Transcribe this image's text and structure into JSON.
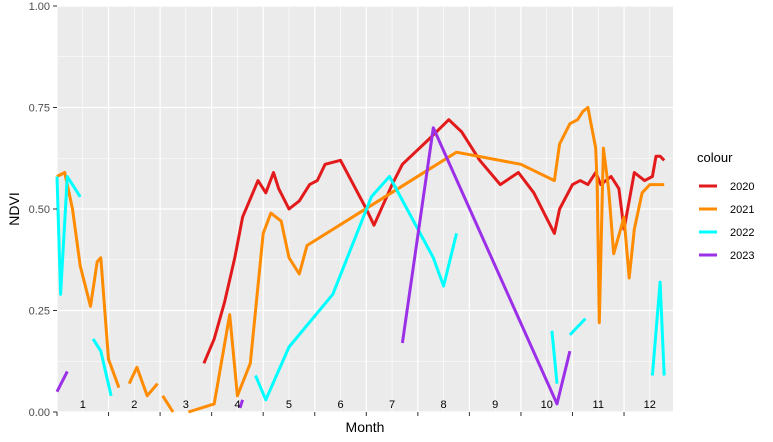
{
  "chart_data": {
    "type": "line",
    "xlabel": "Month",
    "ylabel": "NDVI",
    "ylim": [
      0,
      1
    ],
    "xlim": [
      1,
      12.95
    ],
    "y_ticks": [
      "0.00",
      "0.25",
      "0.50",
      "0.75",
      "1.00"
    ],
    "y_tick_values": [
      0,
      0.25,
      0.5,
      0.75,
      1
    ],
    "month_labels": [
      "1",
      "2",
      "3",
      "4",
      "5",
      "6",
      "7",
      "8",
      "9",
      "10",
      "11",
      "12"
    ],
    "grid": true,
    "legend": {
      "title": "colour",
      "position": "right"
    },
    "series": [
      {
        "name": "2020",
        "color": "#e31a1c",
        "segments": [
          [
            [
              3.85,
              0.12
            ],
            [
              4.05,
              0.18
            ],
            [
              4.25,
              0.27
            ],
            [
              4.45,
              0.38
            ],
            [
              4.6,
              0.48
            ],
            [
              4.9,
              0.57
            ],
            [
              5.05,
              0.54
            ],
            [
              5.2,
              0.59
            ],
            [
              5.3,
              0.55
            ],
            [
              5.5,
              0.5
            ],
            [
              5.7,
              0.52
            ],
            [
              5.9,
              0.56
            ],
            [
              6.05,
              0.57
            ],
            [
              6.2,
              0.61
            ],
            [
              6.5,
              0.62
            ],
            [
              7.0,
              0.5
            ],
            [
              7.15,
              0.46
            ],
            [
              7.5,
              0.56
            ],
            [
              7.7,
              0.61
            ],
            [
              8.2,
              0.67
            ],
            [
              8.6,
              0.72
            ],
            [
              8.85,
              0.69
            ],
            [
              9.2,
              0.62
            ],
            [
              9.6,
              0.56
            ],
            [
              9.95,
              0.59
            ],
            [
              10.25,
              0.54
            ],
            [
              10.65,
              0.44
            ],
            [
              10.75,
              0.5
            ],
            [
              11.0,
              0.56
            ],
            [
              11.15,
              0.57
            ],
            [
              11.3,
              0.56
            ],
            [
              11.45,
              0.59
            ],
            [
              11.55,
              0.56
            ],
            [
              11.75,
              0.58
            ],
            [
              11.9,
              0.55
            ],
            [
              12.0,
              0.45
            ],
            [
              12.1,
              0.52
            ],
            [
              12.2,
              0.59
            ],
            [
              12.4,
              0.57
            ],
            [
              12.55,
              0.58
            ],
            [
              12.62,
              0.63
            ],
            [
              12.7,
              0.63
            ],
            [
              12.78,
              0.62
            ]
          ]
        ]
      },
      {
        "name": "2021",
        "color": "#ff8c00",
        "segments": [
          [
            [
              1.0,
              0.58
            ],
            [
              1.15,
              0.59
            ],
            [
              1.3,
              0.5
            ],
            [
              1.45,
              0.36
            ],
            [
              1.65,
              0.26
            ],
            [
              1.78,
              0.37
            ],
            [
              1.85,
              0.38
            ],
            [
              2.0,
              0.13
            ],
            [
              2.2,
              0.06
            ]
          ],
          [
            [
              2.4,
              0.07
            ],
            [
              2.55,
              0.11
            ],
            [
              2.75,
              0.04
            ],
            [
              2.95,
              0.07
            ]
          ],
          [
            [
              3.05,
              0.04
            ],
            [
              3.25,
              0.0
            ]
          ],
          [
            [
              3.55,
              0.0
            ],
            [
              4.05,
              0.02
            ],
            [
              4.35,
              0.24
            ],
            [
              4.5,
              0.04
            ],
            [
              4.75,
              0.12
            ],
            [
              5.0,
              0.44
            ],
            [
              5.15,
              0.49
            ],
            [
              5.35,
              0.47
            ],
            [
              5.5,
              0.38
            ],
            [
              5.7,
              0.34
            ],
            [
              5.85,
              0.41
            ],
            [
              8.75,
              0.64
            ],
            [
              10.0,
              0.61
            ],
            [
              10.65,
              0.57
            ],
            [
              10.75,
              0.66
            ],
            [
              10.95,
              0.71
            ],
            [
              11.1,
              0.72
            ],
            [
              11.2,
              0.74
            ],
            [
              11.3,
              0.75
            ],
            [
              11.45,
              0.65
            ],
            [
              11.48,
              0.56
            ],
            [
              11.52,
              0.22
            ],
            [
              11.6,
              0.65
            ],
            [
              11.7,
              0.55
            ],
            [
              11.8,
              0.39
            ],
            [
              12.0,
              0.48
            ],
            [
              12.1,
              0.33
            ],
            [
              12.2,
              0.45
            ],
            [
              12.35,
              0.54
            ],
            [
              12.5,
              0.56
            ],
            [
              12.78,
              0.56
            ]
          ]
        ]
      },
      {
        "name": "2022",
        "color": "#00ffff",
        "segments": [
          [
            [
              1.0,
              0.58
            ],
            [
              1.07,
              0.29
            ],
            [
              1.2,
              0.58
            ],
            [
              1.45,
              0.53
            ]
          ],
          [
            [
              1.7,
              0.18
            ],
            [
              1.85,
              0.15
            ],
            [
              2.05,
              0.04
            ]
          ],
          [
            [
              4.85,
              0.09
            ],
            [
              5.05,
              0.03
            ],
            [
              5.5,
              0.16
            ],
            [
              6.35,
              0.29
            ],
            [
              7.1,
              0.53
            ],
            [
              7.45,
              0.58
            ],
            [
              8.3,
              0.38
            ],
            [
              8.5,
              0.31
            ],
            [
              8.75,
              0.44
            ]
          ],
          [
            [
              10.6,
              0.2
            ],
            [
              10.7,
              0.07
            ]
          ],
          [
            [
              10.95,
              0.19
            ],
            [
              11.25,
              0.23
            ]
          ],
          [
            [
              12.55,
              0.09
            ],
            [
              12.7,
              0.32
            ],
            [
              12.78,
              0.09
            ]
          ]
        ]
      },
      {
        "name": "2023",
        "color": "#9b30e8",
        "segments": [
          [
            [
              1.0,
              0.05
            ],
            [
              1.2,
              0.1
            ]
          ],
          [
            [
              4.55,
              0.01
            ],
            [
              4.6,
              0.03
            ]
          ],
          [
            [
              7.7,
              0.17
            ],
            [
              8.3,
              0.7
            ],
            [
              10.7,
              0.02
            ],
            [
              10.95,
              0.15
            ]
          ]
        ]
      }
    ]
  }
}
